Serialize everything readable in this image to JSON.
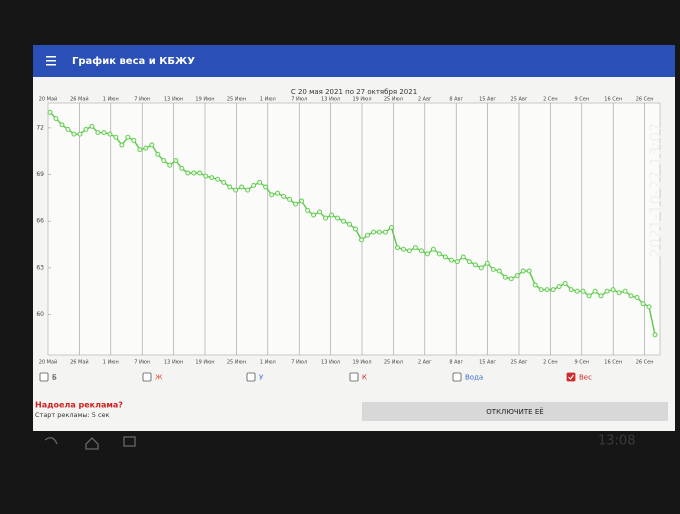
{
  "app": {
    "title": "График веса и КБЖУ",
    "ad_question": "Надоела реклама?",
    "ad_start": "Старт рекламы: 5 сек",
    "ad_button": "ОТКЛЮЧИТЕ ЕЁ",
    "clock": "13:08"
  },
  "photo_timestamp": "2021-10-27 13:07",
  "toggles": [
    {
      "label": "Б",
      "checked": false,
      "color": "#222222"
    },
    {
      "label": "Ж",
      "checked": false,
      "color": "#e0503a"
    },
    {
      "label": "У",
      "checked": false,
      "color": "#3a6ad0"
    },
    {
      "label": "К",
      "checked": false,
      "color": "#d02a2a"
    },
    {
      "label": "Вода",
      "checked": false,
      "color": "#3a6ad0"
    },
    {
      "label": "Вес",
      "checked": true,
      "color": "#d02a2a"
    }
  ],
  "chart_data": {
    "type": "line",
    "title": "С 20 мая 2021 по 27 октября 2021",
    "x_labels": [
      "20 Май",
      "26 Май",
      "1 Июн",
      "7 Июн",
      "13 Июн",
      "19 Июн",
      "25 Июн",
      "1 Июл",
      "7 Июл",
      "13 Июл",
      "19 Июл",
      "25 Июл",
      "2 Авг",
      "8 Авг",
      "15 Авг",
      "25 Авг",
      "2 Сен",
      "9 Сен",
      "16 Сен",
      "26 Сен"
    ],
    "series": [
      {
        "name": "Вес",
        "color": "#5cc94a",
        "values": [
          73.0,
          72.6,
          72.2,
          71.9,
          71.6,
          71.6,
          71.9,
          72.1,
          71.7,
          71.7,
          71.6,
          71.4,
          70.9,
          71.4,
          71.2,
          70.6,
          70.7,
          70.9,
          70.3,
          69.9,
          69.6,
          69.9,
          69.4,
          69.1,
          69.1,
          69.1,
          68.9,
          68.8,
          68.7,
          68.5,
          68.2,
          68.0,
          68.2,
          68.0,
          68.3,
          68.5,
          68.2,
          67.7,
          67.8,
          67.6,
          67.4,
          67.1,
          67.3,
          66.7,
          66.4,
          66.6,
          66.2,
          66.4,
          66.2,
          66.0,
          65.8,
          65.5,
          64.8,
          65.1,
          65.3,
          65.3,
          65.3,
          65.6,
          64.3,
          64.2,
          64.1,
          64.3,
          64.1,
          63.9,
          64.2,
          63.9,
          63.7,
          63.5,
          63.4,
          63.7,
          63.4,
          63.2,
          63.0,
          63.3,
          62.9,
          62.8,
          62.4,
          62.3,
          62.5,
          62.8,
          62.8,
          61.9,
          61.6,
          61.6,
          61.6,
          61.8,
          62.0,
          61.6,
          61.5,
          61.5,
          61.2,
          61.5,
          61.2,
          61.5,
          61.6,
          61.4,
          61.5,
          61.2,
          61.1,
          60.7,
          60.5,
          58.7
        ]
      }
    ],
    "ylim": [
      57.4,
      73.6
    ],
    "yticks": [
      60,
      63,
      66,
      69,
      72
    ],
    "grid": true
  }
}
